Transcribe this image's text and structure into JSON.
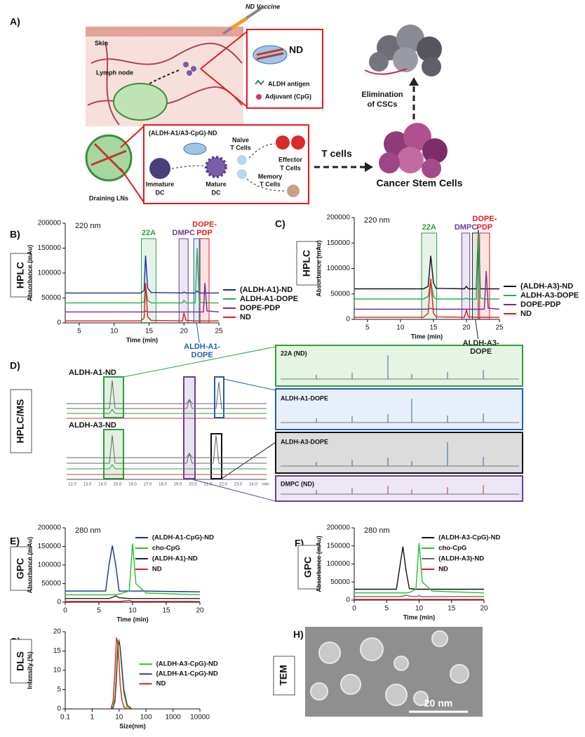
{
  "diagram": {
    "panel": "A)",
    "vaccine": "ND Vaccine",
    "skin": "Skin",
    "nd": "ND",
    "lymph_node": "Lymph node",
    "antigen": "ALDH antigen",
    "adjuvant": "Adjuvant (CpG)",
    "formulation": "(ALDH-A1/A3-CpG)-ND",
    "naive": [
      "Naïve",
      "T Cells"
    ],
    "effector": [
      "Effector",
      "T Cells"
    ],
    "memory": [
      "Memory",
      "T Cells"
    ],
    "immature": [
      "Immature",
      "DC"
    ],
    "mature": [
      "Mature",
      "DC"
    ],
    "draining": "Draining LNs",
    "t_cells": "T cells",
    "elimination": [
      "Elimination",
      "of CSCs"
    ],
    "csc": "Cancer Stem Cells"
  },
  "chart_data": [
    {
      "type": "line",
      "panel": "B)",
      "side_label": "HPLC",
      "subtitle": "220 nm",
      "xlabel": "Time (min)",
      "ylabel": "Absorbance (mAu)",
      "xlim": [
        3,
        25
      ],
      "xticks": [
        5,
        10,
        15,
        20,
        25
      ],
      "ylim": [
        0,
        200000
      ],
      "yticks": [
        0,
        50000,
        100000,
        150000,
        200000
      ],
      "legend": "right",
      "x": [
        3,
        13.8,
        14.3,
        14.5,
        14.8,
        15.3,
        19.8,
        20,
        20.3,
        21.6,
        21.9,
        22.2,
        22.8,
        23,
        23.3,
        25
      ],
      "series": [
        {
          "name": "(ALDH-A1)-ND",
          "color": "#1a2a9c",
          "values": [
            60000,
            60000,
            65000,
            135000,
            70000,
            61000,
            60000,
            62000,
            60000,
            60000,
            64000,
            60000,
            60000,
            60000,
            60000,
            60000
          ]
        },
        {
          "name": "ALDH-A1-DOPE",
          "color": "#22b24c",
          "values": [
            40000,
            40000,
            42000,
            75000,
            45000,
            40000,
            40000,
            45000,
            40000,
            40000,
            150000,
            42000,
            40000,
            40000,
            40000,
            40000
          ]
        },
        {
          "name": "DOPE-PDP",
          "color": "#7b2a8c",
          "values": [
            22000,
            22000,
            22000,
            24000,
            22000,
            22000,
            22000,
            22000,
            22000,
            22000,
            22000,
            22000,
            22000,
            80000,
            24000,
            22000
          ]
        },
        {
          "name": "ND",
          "color": "#e41a1c",
          "values": [
            4000,
            4000,
            10000,
            80000,
            12000,
            5000,
            4000,
            20000,
            5000,
            4000,
            4000,
            4000,
            4000,
            4000,
            4000,
            4000
          ]
        }
      ],
      "highlights": [
        {
          "label": [
            "22A"
          ],
          "xrange": [
            13.9,
            16.0
          ],
          "color": "#2e9e3e",
          "label_position": "above"
        },
        {
          "label": [
            "DMPC"
          ],
          "xrange": [
            19.3,
            20.6
          ],
          "color": "#6a3d9a",
          "label_position": "above"
        },
        {
          "label": [
            "DOPE-",
            "PDP"
          ],
          "xrange": [
            22.3,
            23.6
          ],
          "color": "#e41a1c",
          "label_position": "above"
        },
        {
          "label": [
            "ALDH-A1-",
            "DOPE"
          ],
          "xrange": [
            21.4,
            22.2
          ],
          "color": "#1f5fb0",
          "label_position": "below"
        }
      ]
    },
    {
      "type": "line",
      "panel": "C)",
      "side_label": "HPLC",
      "subtitle": "220 nm",
      "xlabel": "Time (min)",
      "ylabel": "Absorbance (mAu)",
      "xlim": [
        3,
        25
      ],
      "xticks": [
        5,
        10,
        15,
        20,
        25
      ],
      "ylim": [
        0,
        200000
      ],
      "yticks": [
        0,
        50000,
        100000,
        150000,
        200000
      ],
      "legend": "right",
      "x": [
        3,
        13.5,
        14.2,
        14.6,
        15,
        15.4,
        19.7,
        20,
        20.3,
        21.5,
        21.8,
        22.1,
        22.7,
        23,
        23.3,
        25
      ],
      "series": [
        {
          "name": "(ALDH-A3)-ND",
          "color": "#111111",
          "values": [
            60000,
            60000,
            65000,
            125000,
            72000,
            61000,
            60000,
            65000,
            60000,
            60000,
            175000,
            60000,
            60000,
            60000,
            60000,
            60000
          ]
        },
        {
          "name": "ALDH-A3-DOPE",
          "color": "#22b24c",
          "values": [
            40000,
            40000,
            45000,
            75000,
            45000,
            40000,
            40000,
            42000,
            40000,
            40000,
            170000,
            42000,
            40000,
            40000,
            40000,
            40000
          ]
        },
        {
          "name": "DOPE-PDP",
          "color": "#7b2a8c",
          "values": [
            20000,
            20000,
            20000,
            22000,
            20000,
            20000,
            20000,
            20000,
            20000,
            20000,
            20000,
            20000,
            20000,
            95000,
            22000,
            20000
          ]
        },
        {
          "name": "ND",
          "color": "#e41a1c",
          "values": [
            4000,
            4000,
            12000,
            80000,
            12000,
            5000,
            4000,
            18000,
            5000,
            4000,
            4000,
            4000,
            4000,
            4000,
            4000,
            4000
          ]
        }
      ],
      "highlights": [
        {
          "label": [
            "22A"
          ],
          "xrange": [
            13.2,
            15.5
          ],
          "color": "#2e9e3e",
          "label_position": "above"
        },
        {
          "label": [
            "DMPC"
          ],
          "xrange": [
            19.3,
            20.5
          ],
          "color": "#6a3d9a",
          "label_position": "above"
        },
        {
          "label": [
            "DOPE-",
            "PDP"
          ],
          "xrange": [
            22.0,
            23.5
          ],
          "color": "#e41a1c",
          "label_position": "above"
        },
        {
          "label": [
            "ALDH-A3-",
            "DOPE"
          ],
          "xrange": [
            20.9,
            21.8
          ],
          "color": "#222222",
          "label_position": "below"
        }
      ]
    },
    {
      "type": "line",
      "panel": "E)",
      "side_label": "GPC",
      "subtitle": "280 nm",
      "xlabel": "Time (min)",
      "ylabel": "Absorbance (mAu)",
      "xlim": [
        0,
        20
      ],
      "xticks": [
        0,
        5,
        10,
        15,
        20
      ],
      "ylim": [
        0,
        200000
      ],
      "yticks": [
        0,
        50000,
        100000,
        150000,
        200000
      ],
      "legend": "upper right",
      "x": [
        0,
        6,
        6.5,
        7,
        7.5,
        8,
        9.5,
        10,
        10.5,
        12,
        20
      ],
      "series": [
        {
          "name": "(ALDH-A1-CpG)-ND",
          "color": "#1a2a9c",
          "values": [
            30000,
            30000,
            100000,
            152000,
            100000,
            30000,
            30000,
            30000,
            30000,
            30000,
            28000
          ]
        },
        {
          "name": "cho-CpG",
          "color": "#22c22c",
          "values": [
            20000,
            20000,
            20000,
            20000,
            20000,
            22000,
            30000,
            158000,
            50000,
            25000,
            20000
          ]
        },
        {
          "name": "(ALDH-A1)-ND",
          "color": "#222222",
          "values": [
            10000,
            10000,
            10000,
            13000,
            17000,
            12000,
            10000,
            10000,
            10000,
            10000,
            10000
          ]
        },
        {
          "name": "ND",
          "color": "#e41a1c",
          "values": [
            2000,
            2000,
            2000,
            2000,
            2000,
            2000,
            5000,
            2000,
            2000,
            2000,
            2000
          ]
        }
      ]
    },
    {
      "type": "line",
      "panel": "F)",
      "side_label": "GPC",
      "subtitle": "280 nm",
      "xlabel": "Time (min)",
      "ylabel": "Absorbance (mAu)",
      "xlim": [
        0,
        20
      ],
      "xticks": [
        0,
        5,
        10,
        15,
        20
      ],
      "ylim": [
        0,
        200000
      ],
      "yticks": [
        0,
        50000,
        100000,
        150000,
        200000
      ],
      "legend": "upper right",
      "x": [
        0,
        6.5,
        7,
        7.5,
        8,
        8.5,
        9.5,
        10,
        10.5,
        12,
        20
      ],
      "series": [
        {
          "name": "(ALDH-A3-CpG)-ND",
          "color": "#111111",
          "values": [
            30000,
            30000,
            90000,
            148000,
            80000,
            32000,
            30000,
            30000,
            30000,
            30000,
            30000
          ]
        },
        {
          "name": "cho-CpG",
          "color": "#22c22c",
          "values": [
            20000,
            20000,
            20000,
            20000,
            20000,
            21000,
            30000,
            158000,
            50000,
            25000,
            20000
          ]
        },
        {
          "name": "(ALDH-A3)-ND",
          "color": "#666666",
          "values": [
            10000,
            10000,
            10000,
            11000,
            14000,
            11000,
            10000,
            12000,
            10000,
            10000,
            10000
          ]
        },
        {
          "name": "ND",
          "color": "#e41a1c",
          "values": [
            2000,
            2000,
            2000,
            2000,
            2000,
            2000,
            2000,
            2000,
            2000,
            2000,
            2000
          ]
        }
      ]
    },
    {
      "type": "line",
      "panel": "G)",
      "side_label": "DLS",
      "xlabel": "Size(nm)",
      "ylabel": "Intensity (%)",
      "xlim": [
        0.1,
        10000
      ],
      "xticks": [
        0.1,
        1,
        10,
        100,
        1000,
        10000
      ],
      "log_x": true,
      "ylim": [
        0,
        20
      ],
      "yticks": [
        0,
        5,
        10,
        15,
        20
      ],
      "legend": "center right",
      "x": [
        5,
        6,
        7,
        8,
        9,
        10,
        11,
        13,
        15,
        20,
        30
      ],
      "series": [
        {
          "name": "(ALDH-A3-CpG)-ND",
          "color": "#22c22c",
          "values": [
            0,
            0.5,
            3,
            10,
            17,
            18,
            15,
            9,
            4,
            0.5,
            0
          ]
        },
        {
          "name": "(ALDH-A1-CpG)-ND",
          "color": "#444444",
          "values": [
            0,
            0.3,
            2,
            8,
            16,
            17.5,
            16,
            10,
            5,
            1,
            0
          ]
        },
        {
          "name": "ND",
          "color": "#e41a1c",
          "values": [
            0,
            2,
            10,
            18.5,
            17,
            12,
            6,
            2,
            0.5,
            0,
            0
          ]
        }
      ]
    }
  ],
  "hplc_ms": {
    "panel": "D)",
    "side_label": "HPLC/MS",
    "traces": [
      "ALDH-A1-ND",
      "ALDH-A3-ND"
    ],
    "axis_ticks": [
      "12.0",
      "13.0",
      "14.0",
      "15.0",
      "16.0",
      "17.0",
      "18.0",
      "19.0",
      "20.0",
      "21.0",
      "22.0",
      "23.0",
      "24.0"
    ],
    "axis_unit": "min",
    "spectra": [
      "22A (ND)",
      "ALDH-A1-DOPE",
      "ALDH-A3-DOPE",
      "DMPC (ND)"
    ]
  },
  "tem": {
    "panel": "H)",
    "side_label": "TEM",
    "scale_bar": "20 nm"
  }
}
